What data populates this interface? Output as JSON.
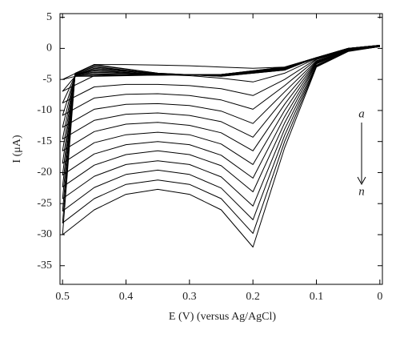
{
  "chart_data": {
    "type": "line",
    "x_label": "E (V) (versus Ag/AgCl)",
    "y_label": "I (μA)",
    "xlim": [
      0.504,
      -0.004
    ],
    "xticks": [
      0.5,
      0.4,
      0.3,
      0.2,
      0.1,
      0
    ],
    "ylim": [
      -38,
      5.6
    ],
    "yticks": [
      5,
      0,
      -5,
      -10,
      -15,
      -20,
      -25,
      -30,
      -35
    ],
    "color": "#000000",
    "annotations": [
      {
        "text": "a"
      },
      {
        "text": "n"
      }
    ],
    "x": [
      0,
      0.05,
      0.1,
      0.15,
      0.2,
      0.25,
      0.3,
      0.35,
      0.4,
      0.45,
      0.5,
      0.48,
      0.45,
      0.35,
      0.25,
      0.15,
      0.1,
      0.05,
      0
    ],
    "series": [
      {
        "values": [
          0.3,
          -0.3,
          -1.5,
          -3,
          -3.2,
          -3,
          -2.8,
          -2.7,
          -2.6,
          -2.6,
          -5,
          -4.5,
          -4.5,
          -4.3,
          -4.2,
          -3.0,
          -1.5,
          -0.2,
          0.3
        ]
      },
      {
        "values": [
          0.3,
          -0.3,
          -1.6,
          -4.0,
          -5.4,
          -4.8,
          -4.4,
          -4.2,
          -4.2,
          -4.4,
          -6.9,
          -4.5,
          -4.4,
          -4.3,
          -4.2,
          -3.0,
          -1.5,
          -0.2,
          0.3
        ]
      },
      {
        "values": [
          0.3,
          -0.3,
          -1.7,
          -5.0,
          -7.6,
          -6.5,
          -6.0,
          -5.8,
          -5.8,
          -6.2,
          -8.8,
          -4.4,
          -4.2,
          -4.3,
          -4.2,
          -3.1,
          -1.5,
          -0.2,
          0.3
        ]
      },
      {
        "values": [
          0.3,
          -0.3,
          -1.8,
          -6.0,
          -9.8,
          -8.3,
          -7.6,
          -7.3,
          -7.4,
          -8.0,
          -10.8,
          -4.4,
          -4.1,
          -4.3,
          -4.2,
          -3.1,
          -1.5,
          -0.2,
          0.3
        ]
      },
      {
        "values": [
          0.3,
          -0.3,
          -2.0,
          -7.0,
          -12.1,
          -10.1,
          -9.2,
          -8.9,
          -9.0,
          -9.8,
          -12.7,
          -4.3,
          -3.9,
          -4.2,
          -4.3,
          -3.1,
          -1.5,
          -0.2,
          0.3
        ]
      },
      {
        "values": [
          0.3,
          -0.3,
          -2.1,
          -8.0,
          -14.3,
          -11.8,
          -10.8,
          -10.4,
          -10.6,
          -11.6,
          -14.6,
          -4.3,
          -3.8,
          -4.2,
          -4.3,
          -3.2,
          -1.5,
          -0.1,
          0.4
        ]
      },
      {
        "values": [
          0.3,
          -0.3,
          -2.2,
          -9.0,
          -16.5,
          -13.6,
          -12.4,
          -11.9,
          -12.2,
          -13.4,
          -16.5,
          -4.3,
          -3.6,
          -4.2,
          -4.3,
          -3.2,
          -1.5,
          -0.1,
          0.4
        ]
      },
      {
        "values": [
          0.3,
          -0.4,
          -2.3,
          -10.0,
          -18.7,
          -15.4,
          -13.9,
          -13.5,
          -13.9,
          -15.2,
          -18.5,
          -4.2,
          -3.5,
          -4.2,
          -4.3,
          -3.3,
          -1.5,
          -0.1,
          0.4
        ]
      },
      {
        "values": [
          0.3,
          -0.4,
          -2.4,
          -11.0,
          -20.9,
          -17.2,
          -15.5,
          -15.0,
          -15.5,
          -17.0,
          -20.4,
          -4.2,
          -3.3,
          -4.1,
          -4.4,
          -3.3,
          -1.5,
          -0.1,
          0.4
        ]
      },
      {
        "values": [
          0.3,
          -0.4,
          -2.5,
          -12.0,
          -23.1,
          -18.9,
          -17.1,
          -16.5,
          -17.1,
          -18.8,
          -22.3,
          -4.2,
          -3.2,
          -4.1,
          -4.4,
          -3.4,
          -1.5,
          -0.1,
          0.4
        ]
      },
      {
        "values": [
          0.3,
          -0.4,
          -2.7,
          -13.0,
          -25.4,
          -20.7,
          -18.7,
          -18.1,
          -18.7,
          -20.6,
          -24.2,
          -4.1,
          -3.0,
          -4.1,
          -4.4,
          -3.4,
          -1.5,
          0,
          0.5
        ]
      },
      {
        "values": [
          0.3,
          -0.4,
          -2.8,
          -14.0,
          -27.6,
          -22.5,
          -20.3,
          -19.6,
          -20.3,
          -22.4,
          -26.2,
          -4.1,
          -2.9,
          -4.1,
          -4.4,
          -3.4,
          -1.5,
          0,
          0.5
        ]
      },
      {
        "values": [
          0.3,
          -0.4,
          -2.9,
          -15.0,
          -29.8,
          -24.2,
          -21.9,
          -21.2,
          -21.9,
          -24.2,
          -28.1,
          -4.0,
          -2.7,
          -4.0,
          -4.5,
          -3.5,
          -1.5,
          0,
          0.5
        ]
      },
      {
        "values": [
          0.3,
          -0.5,
          -3.0,
          -16,
          -32,
          -26,
          -23.5,
          -22.7,
          -23.5,
          -26,
          -30,
          -4.0,
          -2.6,
          -4.0,
          -4.5,
          -3.5,
          -1.5,
          0,
          0.5
        ]
      }
    ]
  }
}
